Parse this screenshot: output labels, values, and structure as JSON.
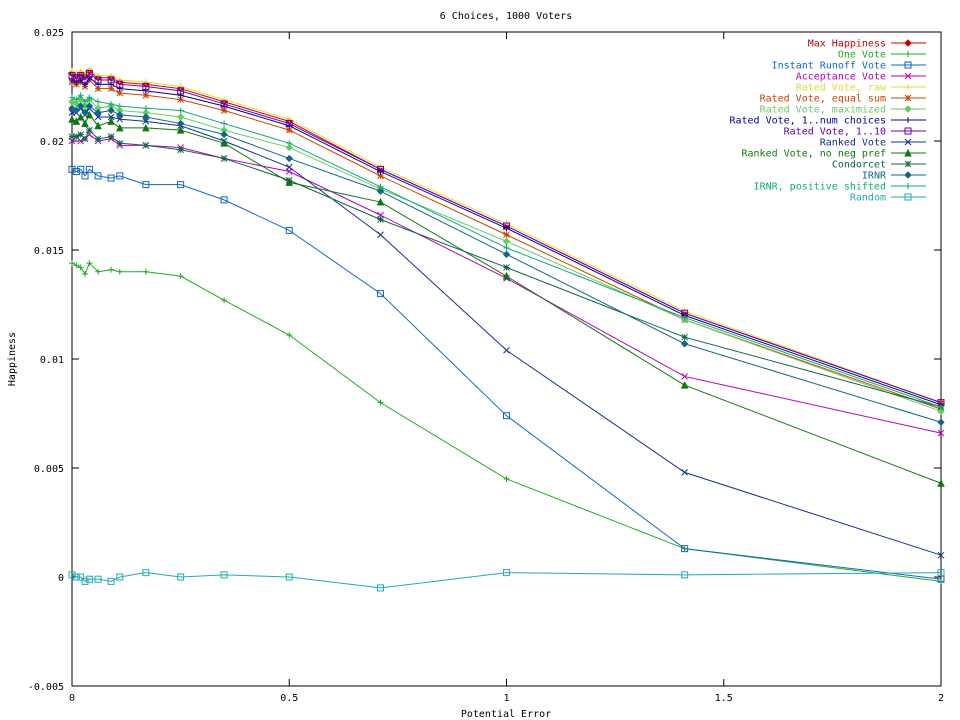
{
  "chart_data": {
    "type": "line",
    "title": "6 Choices, 1000 Voters",
    "xlabel": "Potential Error",
    "ylabel": "Happiness",
    "xlim": [
      0,
      2
    ],
    "ylim": [
      -0.005,
      0.025
    ],
    "xticks": [
      0,
      0.5,
      1,
      1.5,
      2
    ],
    "xtick_labels": [
      "0",
      "0.5",
      "1",
      "1.5",
      "2"
    ],
    "yticks": [
      -0.005,
      0,
      0.005,
      0.01,
      0.015,
      0.02,
      0.025
    ],
    "ytick_labels": [
      "-0.005",
      "0",
      "0.005",
      "0.01",
      "0.015",
      "0.02",
      "0.025"
    ],
    "grid": false,
    "legend_position": "top-right",
    "x": [
      0,
      0.01,
      0.02,
      0.03,
      0.04,
      0.06,
      0.09,
      0.11,
      0.17,
      0.25,
      0.35,
      0.5,
      0.71,
      1,
      1.41,
      2
    ],
    "series": [
      {
        "name": "Max Happiness",
        "color": "#cc0000",
        "marker": "diamond",
        "values": [
          0.0231,
          0.023,
          0.0231,
          0.023,
          0.0232,
          0.0229,
          0.0229,
          0.0227,
          0.0226,
          0.0224,
          0.0218,
          0.0209,
          0.0187,
          0.0161,
          0.0121,
          0.008
        ]
      },
      {
        "name": "One Vote",
        "color": "#22aa22",
        "marker": "plus",
        "values": [
          0.0144,
          0.0143,
          0.0142,
          0.0139,
          0.0144,
          0.014,
          0.0141,
          0.014,
          0.014,
          0.0138,
          0.0127,
          0.0111,
          0.008,
          0.0045,
          0.0013,
          -0.0002
        ]
      },
      {
        "name": "Instant Runoff Vote",
        "color": "#1166cc",
        "marker": "square",
        "values": [
          0.0187,
          0.0186,
          0.0187,
          0.0184,
          0.0187,
          0.0184,
          0.0183,
          0.0184,
          0.018,
          0.018,
          0.0173,
          0.0159,
          0.013,
          0.0074,
          0.0013,
          -0.0001
        ]
      },
      {
        "name": "Acceptance Vote",
        "color": "#bb00bb",
        "marker": "cross",
        "values": [
          0.02,
          0.0202,
          0.02,
          0.0201,
          0.0203,
          0.02,
          0.0201,
          0.0198,
          0.0198,
          0.0197,
          0.0192,
          0.0186,
          0.0166,
          0.0137,
          0.0092,
          0.0066
        ]
      },
      {
        "name": "Rated Vote, raw",
        "color": "#dddd33",
        "marker": "plus",
        "values": [
          0.0232,
          0.0231,
          0.0232,
          0.0231,
          0.0233,
          0.023,
          0.023,
          0.0228,
          0.0227,
          0.0225,
          0.0219,
          0.021,
          0.0188,
          0.0162,
          0.0122,
          0.008
        ]
      },
      {
        "name": "Rated Vote, equal sum",
        "color": "#cc4400",
        "marker": "star",
        "values": [
          0.0227,
          0.0226,
          0.0227,
          0.0225,
          0.0228,
          0.0224,
          0.0224,
          0.0222,
          0.0221,
          0.0219,
          0.0214,
          0.0205,
          0.0184,
          0.0157,
          0.0118,
          0.0077
        ]
      },
      {
        "name": "Rated Vote, maximized",
        "color": "#66cc66",
        "marker": "diamond",
        "values": [
          0.0218,
          0.0217,
          0.0219,
          0.0216,
          0.0219,
          0.0215,
          0.0216,
          0.0214,
          0.0213,
          0.0211,
          0.0205,
          0.0197,
          0.0178,
          0.0154,
          0.0118,
          0.0076
        ]
      },
      {
        "name": "Rated Vote, 1..num choices",
        "color": "#000099",
        "marker": "plus",
        "values": [
          0.0228,
          0.0227,
          0.0228,
          0.0226,
          0.0229,
          0.0226,
          0.0226,
          0.0224,
          0.0223,
          0.0221,
          0.0216,
          0.0207,
          0.0186,
          0.016,
          0.012,
          0.0079
        ]
      },
      {
        "name": "Rated Vote, 1..10",
        "color": "#6600aa",
        "marker": "square",
        "values": [
          0.023,
          0.0229,
          0.023,
          0.0228,
          0.0231,
          0.0228,
          0.0228,
          0.0226,
          0.0225,
          0.0223,
          0.0217,
          0.0208,
          0.0187,
          0.0161,
          0.0121,
          0.008
        ]
      },
      {
        "name": "Ranked Vote",
        "color": "#113388",
        "marker": "cross",
        "values": [
          0.0213,
          0.0213,
          0.0215,
          0.0212,
          0.0215,
          0.0211,
          0.0211,
          0.021,
          0.0209,
          0.0207,
          0.02,
          0.0188,
          0.0157,
          0.0104,
          0.0048,
          0.001
        ]
      },
      {
        "name": "Ranked Vote, no neg pref",
        "color": "#117711",
        "marker": "triangle",
        "values": [
          0.021,
          0.0209,
          0.0211,
          0.0208,
          0.0212,
          0.0207,
          0.0209,
          0.0206,
          0.0206,
          0.0205,
          0.0199,
          0.0181,
          0.0172,
          0.0138,
          0.0088,
          0.0043
        ]
      },
      {
        "name": "Condorcet",
        "color": "#116644",
        "marker": "star",
        "values": [
          0.0202,
          0.0202,
          0.0203,
          0.0201,
          0.0205,
          0.0201,
          0.0202,
          0.0199,
          0.0198,
          0.0196,
          0.0192,
          0.0182,
          0.0164,
          0.0142,
          0.011,
          0.0078
        ]
      },
      {
        "name": "IRNR",
        "color": "#116688",
        "marker": "diamond",
        "values": [
          0.0215,
          0.0214,
          0.0216,
          0.0213,
          0.0216,
          0.0213,
          0.0214,
          0.0212,
          0.0211,
          0.0208,
          0.0203,
          0.0192,
          0.0177,
          0.0148,
          0.0107,
          0.0071
        ]
      },
      {
        "name": "IRNR, positive shifted",
        "color": "#11aa77",
        "marker": "plus",
        "values": [
          0.022,
          0.0219,
          0.0221,
          0.0218,
          0.022,
          0.0218,
          0.0217,
          0.0216,
          0.0215,
          0.0214,
          0.0208,
          0.0199,
          0.0179,
          0.0151,
          0.0119,
          0.0078
        ]
      },
      {
        "name": "Random",
        "color": "#22aabb",
        "marker": "square",
        "values": [
          0.0001,
          0.0,
          0.0,
          -0.0002,
          -0.0001,
          -0.0001,
          -0.0002,
          0.0,
          0.0002,
          0.0,
          0.0001,
          0.0,
          -0.0005,
          0.0002,
          0.0001,
          0.0002
        ]
      }
    ]
  }
}
